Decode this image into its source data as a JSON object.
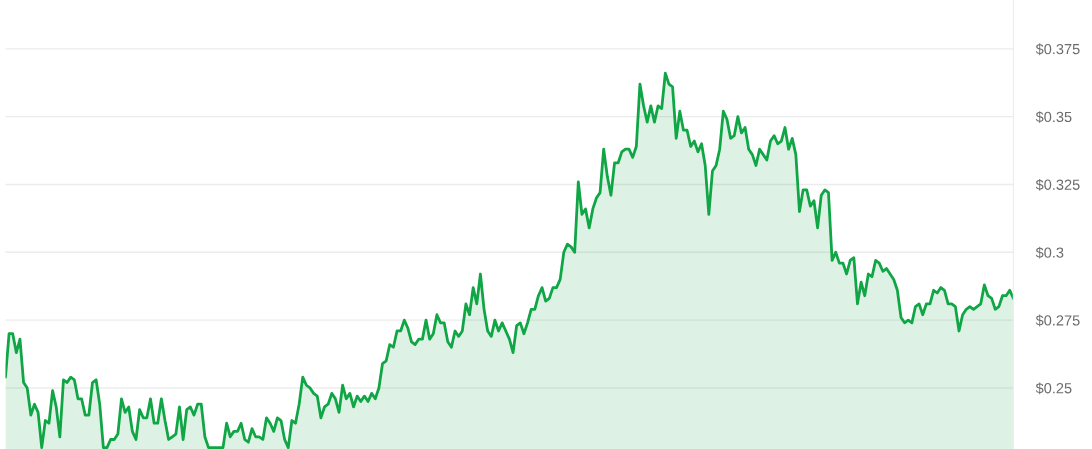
{
  "chart_data": {
    "type": "area",
    "categories": [
      null,
      null,
      null,
      null,
      null,
      null,
      null,
      null,
      null,
      null,
      null,
      null,
      null,
      null,
      null,
      null,
      null,
      null,
      null,
      null,
      null,
      null,
      null,
      null,
      null,
      null,
      null,
      null,
      null,
      null,
      null,
      null,
      null,
      null,
      null,
      null,
      null,
      null,
      null,
      null,
      null,
      null,
      null,
      null,
      null,
      null,
      null,
      null,
      null,
      null,
      null,
      null,
      null,
      null,
      null,
      null,
      null,
      null,
      null,
      null,
      null,
      null,
      null,
      null,
      null,
      null,
      null,
      null,
      null,
      null,
      null,
      null,
      null,
      null,
      null,
      null,
      null,
      null,
      null,
      null,
      null,
      null,
      null,
      null,
      null,
      null,
      null,
      null,
      null,
      null,
      null,
      null,
      null,
      null,
      null,
      null,
      null,
      null,
      null,
      null,
      null,
      null,
      null,
      null,
      null,
      null,
      null,
      null,
      null,
      null,
      null,
      null,
      null,
      null,
      null,
      null,
      null,
      null,
      null,
      null,
      null,
      null,
      null,
      null,
      null,
      null,
      null,
      null,
      null,
      null,
      null,
      null,
      null,
      null,
      null,
      null,
      null,
      null,
      null,
      null,
      null,
      null,
      null,
      null,
      null,
      null,
      null,
      null,
      null,
      null,
      null,
      null,
      null,
      null,
      null,
      null,
      null,
      null,
      null,
      null,
      null,
      null,
      null,
      null,
      null,
      null,
      null,
      null,
      null,
      null,
      null,
      null,
      null,
      null,
      null,
      null,
      null,
      null,
      null,
      null,
      null,
      null,
      null,
      null,
      null,
      null,
      null,
      null,
      null,
      null,
      null,
      null,
      null,
      null,
      null,
      null,
      null,
      null,
      null,
      null,
      null,
      null,
      null,
      null,
      null,
      null,
      null,
      null,
      null,
      null,
      null,
      null,
      null,
      null,
      null,
      null,
      null,
      null,
      null,
      null,
      null,
      null,
      null,
      null,
      null,
      null,
      null,
      null,
      null,
      null,
      null,
      null,
      null,
      null,
      null,
      null,
      null,
      null,
      null,
      null,
      null,
      null,
      null,
      null,
      null,
      null,
      null,
      null,
      null,
      null,
      null,
      null,
      null,
      null,
      null,
      null,
      null,
      null,
      null,
      null,
      null,
      null,
      null,
      null,
      null,
      null,
      null,
      null,
      null,
      null,
      null,
      null,
      null,
      null,
      null,
      null,
      null,
      null,
      null
    ],
    "series": [
      {
        "color": "#10a545",
        "values": [
          0.254,
          0.27,
          0.27,
          0.263,
          0.268,
          0.252,
          0.25,
          0.24,
          0.244,
          0.241,
          0.228,
          0.238,
          0.237,
          0.249,
          0.243,
          0.232,
          0.253,
          0.252,
          0.254,
          0.253,
          0.246,
          0.246,
          0.24,
          0.24,
          0.252,
          0.253,
          0.244,
          0.228,
          0.228,
          0.231,
          0.231,
          0.233,
          0.246,
          0.241,
          0.243,
          0.234,
          0.231,
          0.242,
          0.239,
          0.239,
          0.246,
          0.237,
          0.237,
          0.246,
          0.238,
          0.231,
          0.232,
          0.233,
          0.243,
          0.231,
          0.242,
          0.243,
          0.24,
          0.244,
          0.244,
          0.232,
          0.228,
          0.228,
          0.228,
          0.228,
          0.228,
          0.237,
          0.232,
          0.234,
          0.234,
          0.237,
          0.231,
          0.23,
          0.235,
          0.232,
          0.232,
          0.231,
          0.239,
          0.237,
          0.234,
          0.239,
          0.238,
          0.231,
          0.228,
          0.238,
          0.237,
          0.244,
          0.254,
          0.251,
          0.25,
          0.248,
          0.247,
          0.239,
          0.243,
          0.244,
          0.248,
          0.246,
          0.241,
          0.251,
          0.246,
          0.248,
          0.243,
          0.247,
          0.245,
          0.247,
          0.245,
          0.248,
          0.246,
          0.25,
          0.259,
          0.26,
          0.266,
          0.265,
          0.271,
          0.271,
          0.275,
          0.272,
          0.267,
          0.266,
          0.268,
          0.268,
          0.275,
          0.268,
          0.27,
          0.277,
          0.274,
          0.274,
          0.267,
          0.265,
          0.271,
          0.269,
          0.271,
          0.281,
          0.277,
          0.287,
          0.281,
          0.292,
          0.279,
          0.271,
          0.269,
          0.275,
          0.271,
          0.274,
          0.271,
          0.268,
          0.263,
          0.273,
          0.274,
          0.27,
          0.274,
          0.279,
          0.279,
          0.284,
          0.287,
          0.282,
          0.283,
          0.287,
          0.287,
          0.29,
          0.3,
          0.303,
          0.302,
          0.3,
          0.326,
          0.314,
          0.316,
          0.309,
          0.316,
          0.32,
          0.322,
          0.338,
          0.328,
          0.321,
          0.333,
          0.333,
          0.337,
          0.338,
          0.338,
          0.335,
          0.339,
          0.362,
          0.354,
          0.348,
          0.354,
          0.348,
          0.354,
          0.353,
          0.366,
          0.362,
          0.361,
          0.342,
          0.352,
          0.345,
          0.345,
          0.339,
          0.341,
          0.337,
          0.34,
          0.332,
          0.314,
          0.33,
          0.332,
          0.338,
          0.352,
          0.349,
          0.342,
          0.343,
          0.35,
          0.344,
          0.346,
          0.338,
          0.336,
          0.332,
          0.338,
          0.336,
          0.334,
          0.341,
          0.343,
          0.34,
          0.341,
          0.346,
          0.338,
          0.342,
          0.336,
          0.315,
          0.323,
          0.323,
          0.317,
          0.319,
          0.309,
          0.321,
          0.323,
          0.322,
          0.297,
          0.3,
          0.296,
          0.296,
          0.292,
          0.297,
          0.298,
          0.281,
          0.289,
          0.284,
          0.292,
          0.291,
          0.297,
          0.296,
          0.293,
          0.294,
          0.292,
          0.29,
          0.286,
          0.276,
          0.274,
          0.275,
          0.274,
          0.28,
          0.281,
          0.277,
          0.281,
          0.281,
          0.286,
          0.285,
          0.287,
          0.286,
          0.281,
          0.281,
          0.28,
          0.271,
          0.277,
          0.279,
          0.28,
          0.279,
          0.28,
          0.281,
          0.288,
          0.284,
          0.283,
          0.279,
          0.28,
          0.284,
          0.284,
          0.286,
          0.283
        ]
      }
    ],
    "ylim": [
      0.2275,
      0.393
    ],
    "yticks": [
      {
        "value": 0.25,
        "label": "$0.25"
      },
      {
        "value": 0.275,
        "label": "$0.275"
      },
      {
        "value": 0.3,
        "label": "$0.3"
      },
      {
        "value": 0.325,
        "label": "$0.325"
      },
      {
        "value": 0.35,
        "label": "$0.35"
      },
      {
        "value": 0.375,
        "label": "$0.375"
      }
    ],
    "tick_labels": "y",
    "grid": "y",
    "legend": false
  }
}
